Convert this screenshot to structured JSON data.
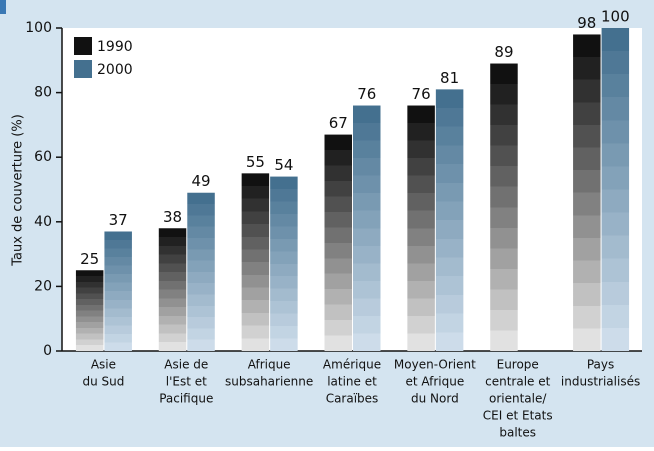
{
  "chart_data": {
    "type": "bar",
    "y_label": "Taux de couverture (%)",
    "categories": [
      [
        "Asie",
        "du Sud"
      ],
      [
        "Asie de",
        "l'Est et",
        "Pacifique"
      ],
      [
        "Afrique",
        "subsaharienne"
      ],
      [
        "Amérique",
        "latine et",
        "Caraïbes"
      ],
      [
        "Moyen-Orient",
        "et Afrique",
        "du Nord"
      ],
      [
        "Europe",
        "centrale et",
        "orientale/",
        "CEI et Etats",
        "baltes"
      ],
      [
        "Pays",
        "industrialisés"
      ]
    ],
    "series": [
      {
        "name": "1990",
        "color": "#111111",
        "values": [
          25,
          38,
          55,
          67,
          76,
          89,
          98
        ]
      },
      {
        "name": "2000",
        "color": "#44708f",
        "values": [
          37,
          49,
          54,
          76,
          81,
          null,
          100
        ]
      }
    ],
    "ylim": [
      0,
      100
    ],
    "yticks": [
      0,
      20,
      40,
      60,
      80,
      100
    ],
    "legend": "upper left"
  }
}
